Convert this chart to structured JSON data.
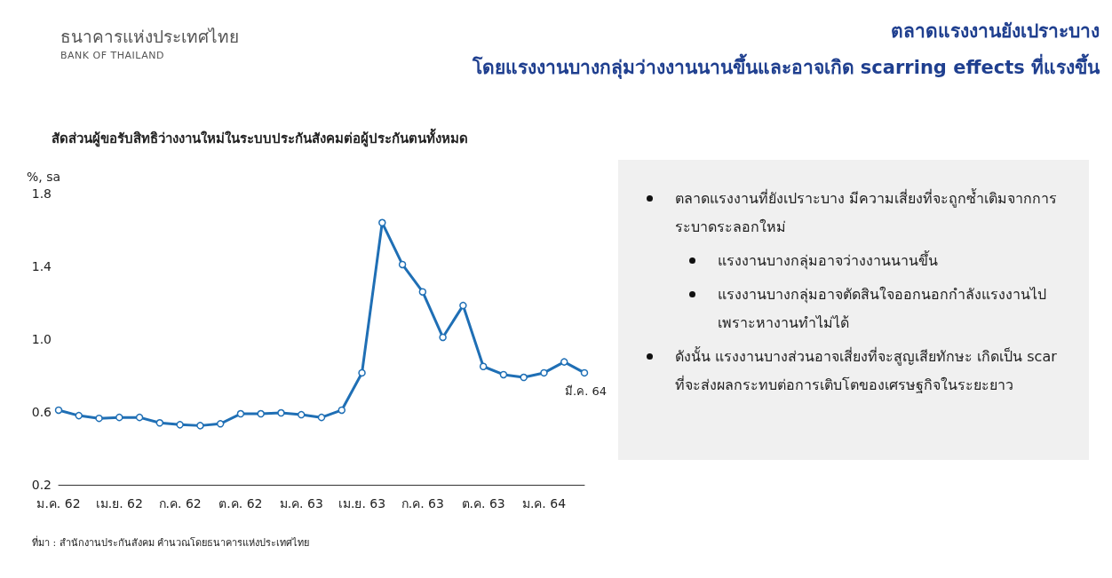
{
  "chart_data": {
    "type": "line",
    "title": "ตลาดแรงงานยังเปราะบาง",
    "subtitle": "โดยแรงงานบางกลุ่มว่างงานนานขึ้นและอาจเกิด  scarring effects ที่แรงขึ้น",
    "ylabel": "%, sa",
    "annotations": [
      "ธนาคารแห่งประเทศไทย",
      "BANK OF THAILAND",
      "สัดส่วนผู้ขอรับสิทธิว่างงานใหม่ในระบบประกันสังคมต่อผู้ประกันตนทั้งหมด",
      "ตลาดแรงงานที่ยังเปราะบาง มีความเสี่ยงที่จะถูกซ้ำเติมจากการระบาดระลอกใหม่",
      "แรงงานบางกลุ่มอาจว่างงานนานขึ้น",
      "แรงงานบางกลุ่มอาจตัดสินใจออกนอกกำลังแรงงานไป เพราะหางานทำไม่ได้",
      "ดังนั้น แรงงานบางส่วนอาจเสี่ยงที่จะสูญเสียทักษะ เกิดเป็น scar ที่จะส่งผลกระทบต่อการเติบโตของเศรษฐกิจในระยะยาว",
      "มี.ค. 64",
      "ที่มา : สำนักงานประกันสังคม คำนวณโดยธนาคารแห่งประเทศไทย"
    ],
    "categories": [
      "ม.ค. 62",
      null,
      null,
      "เม.ย. 62",
      null,
      null,
      "ก.ค. 62",
      null,
      null,
      "ต.ค. 62",
      null,
      null,
      "ม.ค. 63",
      null,
      null,
      "เม.ย. 63",
      null,
      null,
      "ก.ค. 63",
      null,
      null,
      "ต.ค. 63",
      null,
      null,
      "ม.ค. 64",
      null,
      null
    ],
    "series": [
      {
        "color": "#1f6fb5",
        "values": [
          0.61,
          0.58,
          0.565,
          0.57,
          0.57,
          0.54,
          0.53,
          0.525,
          0.535,
          0.59,
          0.59,
          0.595,
          0.585,
          0.57,
          0.61,
          0.815,
          1.64,
          1.41,
          1.26,
          1.01,
          1.185,
          0.85,
          0.805,
          0.79,
          0.815,
          0.875,
          0.815
        ]
      }
    ],
    "ylim": [
      0.2,
      1.8
    ],
    "yticks": [
      0.2,
      0.6,
      {
        "value": 1,
        "label": "1.0"
      },
      1.4,
      1.8
    ],
    "grid": false,
    "marker": "circle",
    "line_style": "solid"
  }
}
